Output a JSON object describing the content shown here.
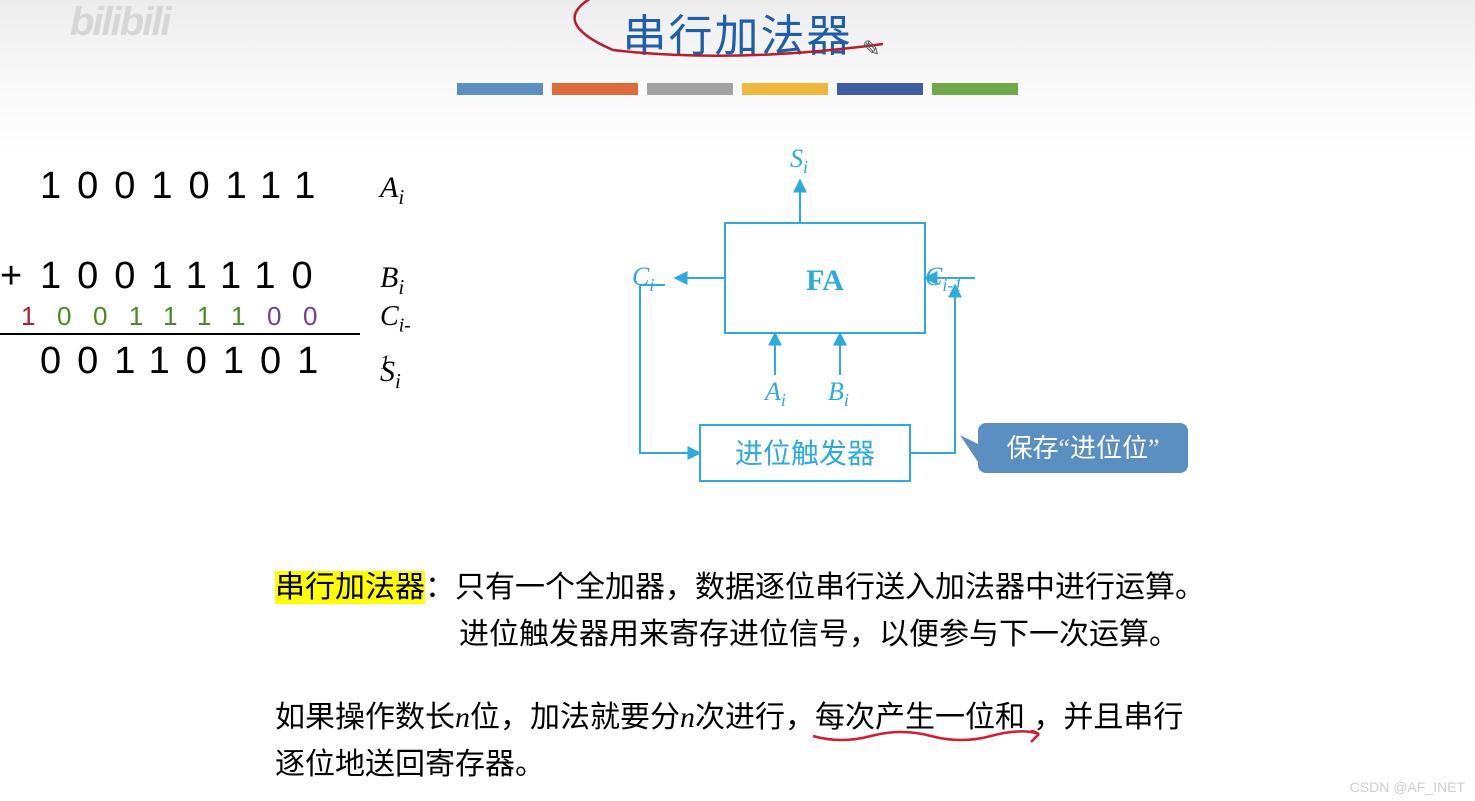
{
  "header": {
    "title_text": "串行加法器",
    "title_color": "#1f5ea8",
    "underline_color": "#b81d2c",
    "colorbar": {
      "segment_width": 86,
      "gap": 9,
      "colors": [
        "#5b8ec1",
        "#dd6b3d",
        "#a2a2a2",
        "#eeb83e",
        "#3d5ea0",
        "#6fa94a"
      ]
    }
  },
  "logo_text": "bilibili",
  "binary_example": {
    "plus_sign": "+",
    "rows": {
      "A": {
        "digits": "10010111",
        "label": "A",
        "sub": "i",
        "color": "#000000"
      },
      "B": {
        "digits": "10011110",
        "label": "B",
        "sub": "i",
        "color": "#000000"
      },
      "C": {
        "digits": "100111100",
        "label": "C",
        "sub": "i-1",
        "digit_colors": [
          "#b81d2c",
          "#4a8a2b",
          "#4a8a2b",
          "#4a8a2b",
          "#4a8a2b",
          "#4a8a2b",
          "#4a8a2b",
          "#6b3fa0",
          "#6b3fa0"
        ]
      },
      "S": {
        "digits": "00110101",
        "label": "S",
        "sub": "i",
        "color": "#000000"
      }
    },
    "hr_color": "#000000"
  },
  "diagram": {
    "type": "flowchart",
    "stroke_color": "#2eaadc",
    "text_color": "#2eaadc",
    "fa_label": "FA",
    "carry_ff_label": "进位触发器",
    "S_label": "S",
    "S_sub": "i",
    "A_label": "A",
    "A_sub": "i",
    "B_label": "B",
    "B_sub": "i",
    "Cout_label": "C",
    "Cout_sub": "i",
    "Cin_label": "C",
    "Cin_sub": "i-1",
    "callout": {
      "text": "保存“进位位”",
      "bg": "#5b8ec1",
      "fg": "#ffffff"
    }
  },
  "paragraphs": {
    "p1_hl": "串行加法器",
    "p1_rest_line1": "：只有一个全加器，数据逐位串行送入加法器中进行运算。",
    "p1_line2": "进位触发器用来寄存进位信号，以便参与下一次运算。",
    "p2_pre": "如果操作数长",
    "p2_n1": "n",
    "p2_mid1": "位，加法就要分",
    "p2_n2": "n",
    "p2_mid2": "次进行，",
    "p2_underlined": "每次产生一位和",
    "p2_post1": "，并且串行",
    "p2_line2": "逐位地送回寄存器。",
    "underline_color": "#d51c2f"
  },
  "watermark": "CSDN @AF_INET"
}
